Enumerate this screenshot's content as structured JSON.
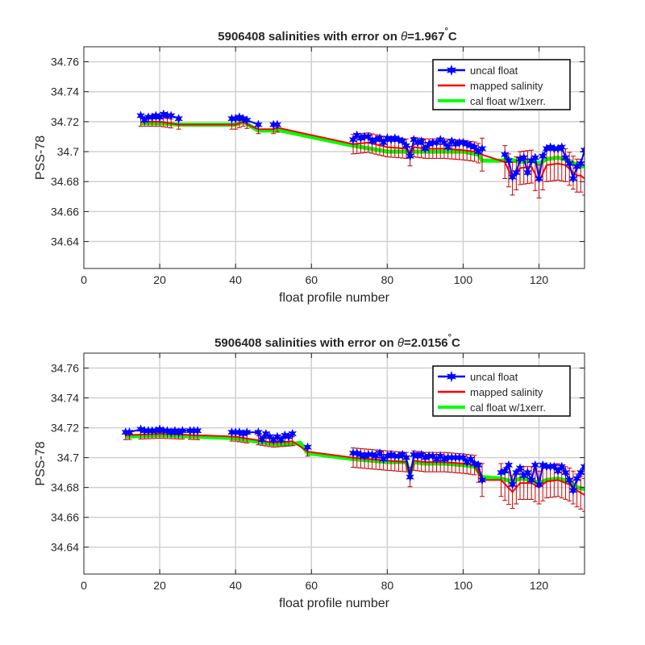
{
  "chart_data": [
    {
      "type": "line",
      "title": "5906408 salinities with error on θ=1.967°C",
      "title_prefix": "5906408 salinities with error on ",
      "title_theta": "θ",
      "title_value": "=1.967",
      "title_deg": "°",
      "title_unit": "C",
      "xlabel": "float profile number",
      "ylabel": "PSS-78",
      "xlim": [
        0,
        132
      ],
      "ylim": [
        34.622,
        34.77
      ],
      "xticks": [
        0,
        20,
        40,
        60,
        80,
        100,
        120
      ],
      "yticks": [
        34.64,
        34.66,
        34.68,
        34.7,
        34.72,
        34.74,
        34.76
      ],
      "ytick_labels": [
        "34.64",
        "34.66",
        "34.68",
        "34.7",
        "34.72",
        "34.74",
        "34.76"
      ],
      "grid": true,
      "legend_position": "top-right",
      "legend": [
        "uncal float",
        "mapped salinity",
        "cal float w/1xerr."
      ],
      "colors": {
        "uncal": "#0000ff",
        "mapped": "#ff0000",
        "cal": "#00ff00",
        "errorbar": "#cc0000"
      },
      "series": [
        {
          "name": "uncal float",
          "x": [
            15,
            16,
            17,
            18,
            19,
            20,
            21,
            22,
            23,
            25,
            39,
            40,
            41,
            42,
            43,
            46,
            50,
            51,
            71,
            72,
            73,
            74,
            75,
            76,
            77,
            78,
            79,
            80,
            81,
            82,
            83,
            84,
            85,
            86,
            87,
            88,
            89,
            90,
            91,
            92,
            93,
            94,
            95,
            96,
            97,
            98,
            99,
            100,
            101,
            102,
            103,
            104,
            105,
            111,
            112,
            113,
            114,
            115,
            116,
            117,
            118,
            119,
            120,
            121,
            122,
            123,
            124,
            125,
            126,
            127,
            128,
            129,
            130,
            131,
            132
          ],
          "y": [
            34.724,
            34.721,
            34.723,
            34.723,
            34.724,
            34.723,
            34.725,
            34.724,
            34.724,
            34.722,
            34.722,
            34.722,
            34.723,
            34.722,
            34.721,
            34.718,
            34.718,
            34.718,
            34.708,
            34.711,
            34.709,
            34.71,
            34.71,
            34.707,
            34.708,
            34.709,
            34.706,
            34.709,
            34.708,
            34.709,
            34.708,
            34.707,
            34.704,
            34.697,
            34.708,
            34.706,
            34.707,
            34.702,
            34.705,
            34.706,
            34.706,
            34.708,
            34.706,
            34.703,
            34.707,
            34.705,
            34.706,
            34.706,
            34.705,
            34.704,
            34.703,
            34.7,
            34.702,
            34.698,
            34.694,
            34.683,
            34.686,
            34.695,
            34.696,
            34.686,
            34.694,
            34.696,
            34.682,
            34.697,
            34.702,
            34.703,
            34.702,
            34.702,
            34.703,
            34.696,
            34.692,
            34.682,
            34.69,
            34.692,
            34.701
          ]
        },
        {
          "name": "mapped salinity",
          "x": [
            15,
            20,
            25,
            40,
            42,
            44,
            46,
            50,
            51,
            71,
            75,
            80,
            85,
            86,
            87,
            90,
            95,
            100,
            103,
            105,
            111,
            113,
            115,
            118,
            120,
            122,
            125,
            127,
            129,
            130,
            131,
            132
          ],
          "y": [
            34.72,
            34.72,
            34.718,
            34.718,
            34.72,
            34.717,
            34.715,
            34.715,
            34.716,
            34.705,
            34.706,
            34.703,
            34.702,
            34.697,
            34.703,
            34.702,
            34.702,
            34.701,
            34.7,
            34.698,
            34.693,
            34.682,
            34.689,
            34.69,
            34.68,
            34.691,
            34.692,
            34.691,
            34.686,
            34.684,
            34.684,
            34.682
          ]
        },
        {
          "name": "cal float w/1xerr.",
          "x": [
            15,
            20,
            25,
            40,
            42,
            46,
            50,
            52,
            71,
            80,
            85,
            90,
            95,
            100,
            104,
            105,
            110,
            112,
            115,
            118,
            120,
            122,
            125,
            128,
            130,
            132
          ],
          "y": [
            34.719,
            34.719,
            34.718,
            34.718,
            34.72,
            34.714,
            34.714,
            34.714,
            34.704,
            34.7,
            34.7,
            34.7,
            34.7,
            34.7,
            34.698,
            34.694,
            34.694,
            34.695,
            34.693,
            34.694,
            34.692,
            34.695,
            34.696,
            34.694,
            34.691,
            34.69
          ]
        }
      ]
    },
    {
      "type": "line",
      "title": "5906408 salinities with error on θ=2.0156°C",
      "title_prefix": "5906408 salinities with error on ",
      "title_theta": "θ",
      "title_value": "=2.0156",
      "title_deg": "°",
      "title_unit": "C",
      "xlabel": "float profile number",
      "ylabel": "PSS-78",
      "xlim": [
        0,
        132
      ],
      "ylim": [
        34.622,
        34.77
      ],
      "xticks": [
        0,
        20,
        40,
        60,
        80,
        100,
        120
      ],
      "yticks": [
        34.64,
        34.66,
        34.68,
        34.7,
        34.72,
        34.74,
        34.76
      ],
      "ytick_labels": [
        "34.64",
        "34.66",
        "34.68",
        "34.7",
        "34.72",
        "34.74",
        "34.76"
      ],
      "grid": true,
      "legend_position": "top-right",
      "legend": [
        "uncal float",
        "mapped salinity",
        "cal float w/1xerr."
      ],
      "colors": {
        "uncal": "#0000ff",
        "mapped": "#ff0000",
        "cal": "#00ff00",
        "errorbar": "#cc0000"
      },
      "series": [
        {
          "name": "uncal float",
          "x": [
            11,
            12,
            15,
            16,
            17,
            18,
            19,
            20,
            21,
            22,
            23,
            24,
            25,
            26,
            28,
            29,
            30,
            39,
            40,
            41,
            42,
            43,
            46,
            47,
            48,
            49,
            50,
            51,
            52,
            53,
            54,
            55,
            59,
            71,
            72,
            73,
            74,
            75,
            76,
            77,
            78,
            79,
            80,
            81,
            82,
            83,
            84,
            85,
            86,
            87,
            88,
            89,
            90,
            91,
            92,
            93,
            94,
            95,
            96,
            97,
            98,
            99,
            100,
            101,
            102,
            103,
            104,
            105,
            110,
            111,
            112,
            113,
            114,
            115,
            116,
            117,
            118,
            119,
            120,
            121,
            122,
            123,
            124,
            125,
            126,
            127,
            128,
            129,
            130,
            131,
            132
          ],
          "y": [
            34.717,
            34.717,
            34.719,
            34.718,
            34.718,
            34.718,
            34.718,
            34.719,
            34.718,
            34.718,
            34.717,
            34.718,
            34.717,
            34.718,
            34.718,
            34.718,
            34.718,
            34.717,
            34.717,
            34.717,
            34.716,
            34.717,
            34.717,
            34.712,
            34.716,
            34.714,
            34.712,
            34.714,
            34.712,
            34.715,
            34.714,
            34.716,
            34.707,
            34.703,
            34.703,
            34.702,
            34.701,
            34.702,
            34.702,
            34.701,
            34.703,
            34.699,
            34.701,
            34.702,
            34.701,
            34.701,
            34.702,
            34.7,
            34.687,
            34.702,
            34.701,
            34.702,
            34.7,
            34.701,
            34.701,
            34.699,
            34.701,
            34.699,
            34.7,
            34.7,
            34.7,
            34.7,
            34.7,
            34.697,
            34.699,
            34.696,
            34.695,
            34.685,
            34.69,
            34.691,
            34.695,
            34.682,
            34.69,
            34.693,
            34.688,
            34.69,
            34.685,
            34.695,
            34.682,
            34.695,
            34.694,
            34.694,
            34.694,
            34.691,
            34.694,
            34.69,
            34.685,
            34.678,
            34.686,
            34.69,
            34.694
          ]
        },
        {
          "name": "mapped salinity",
          "x": [
            11,
            20,
            30,
            40,
            45,
            50,
            55,
            59,
            71,
            80,
            85,
            86,
            87,
            90,
            95,
            100,
            103,
            105,
            110,
            113,
            115,
            118,
            120,
            122,
            125,
            128,
            130,
            132
          ],
          "y": [
            34.715,
            34.716,
            34.715,
            34.714,
            34.712,
            34.71,
            34.711,
            34.704,
            34.7,
            34.698,
            34.697,
            34.687,
            34.698,
            34.697,
            34.697,
            34.696,
            34.695,
            34.685,
            34.685,
            34.677,
            34.683,
            34.683,
            34.68,
            34.684,
            34.685,
            34.682,
            34.678,
            34.675
          ]
        },
        {
          "name": "cal float w/1xerr.",
          "x": [
            11,
            20,
            30,
            40,
            45,
            50,
            52,
            55,
            57,
            59,
            71,
            80,
            85,
            86,
            87,
            90,
            95,
            100,
            103,
            105,
            110,
            113,
            115,
            118,
            120,
            122,
            125,
            128,
            130,
            132
          ],
          "y": [
            34.714,
            34.715,
            34.714,
            34.713,
            34.711,
            34.709,
            34.709,
            34.709,
            34.71,
            34.703,
            34.699,
            34.697,
            34.697,
            34.689,
            34.697,
            34.696,
            34.696,
            34.695,
            34.694,
            34.687,
            34.686,
            34.684,
            34.686,
            34.685,
            34.683,
            34.685,
            34.686,
            34.684,
            34.68,
            34.679
          ]
        }
      ]
    }
  ]
}
